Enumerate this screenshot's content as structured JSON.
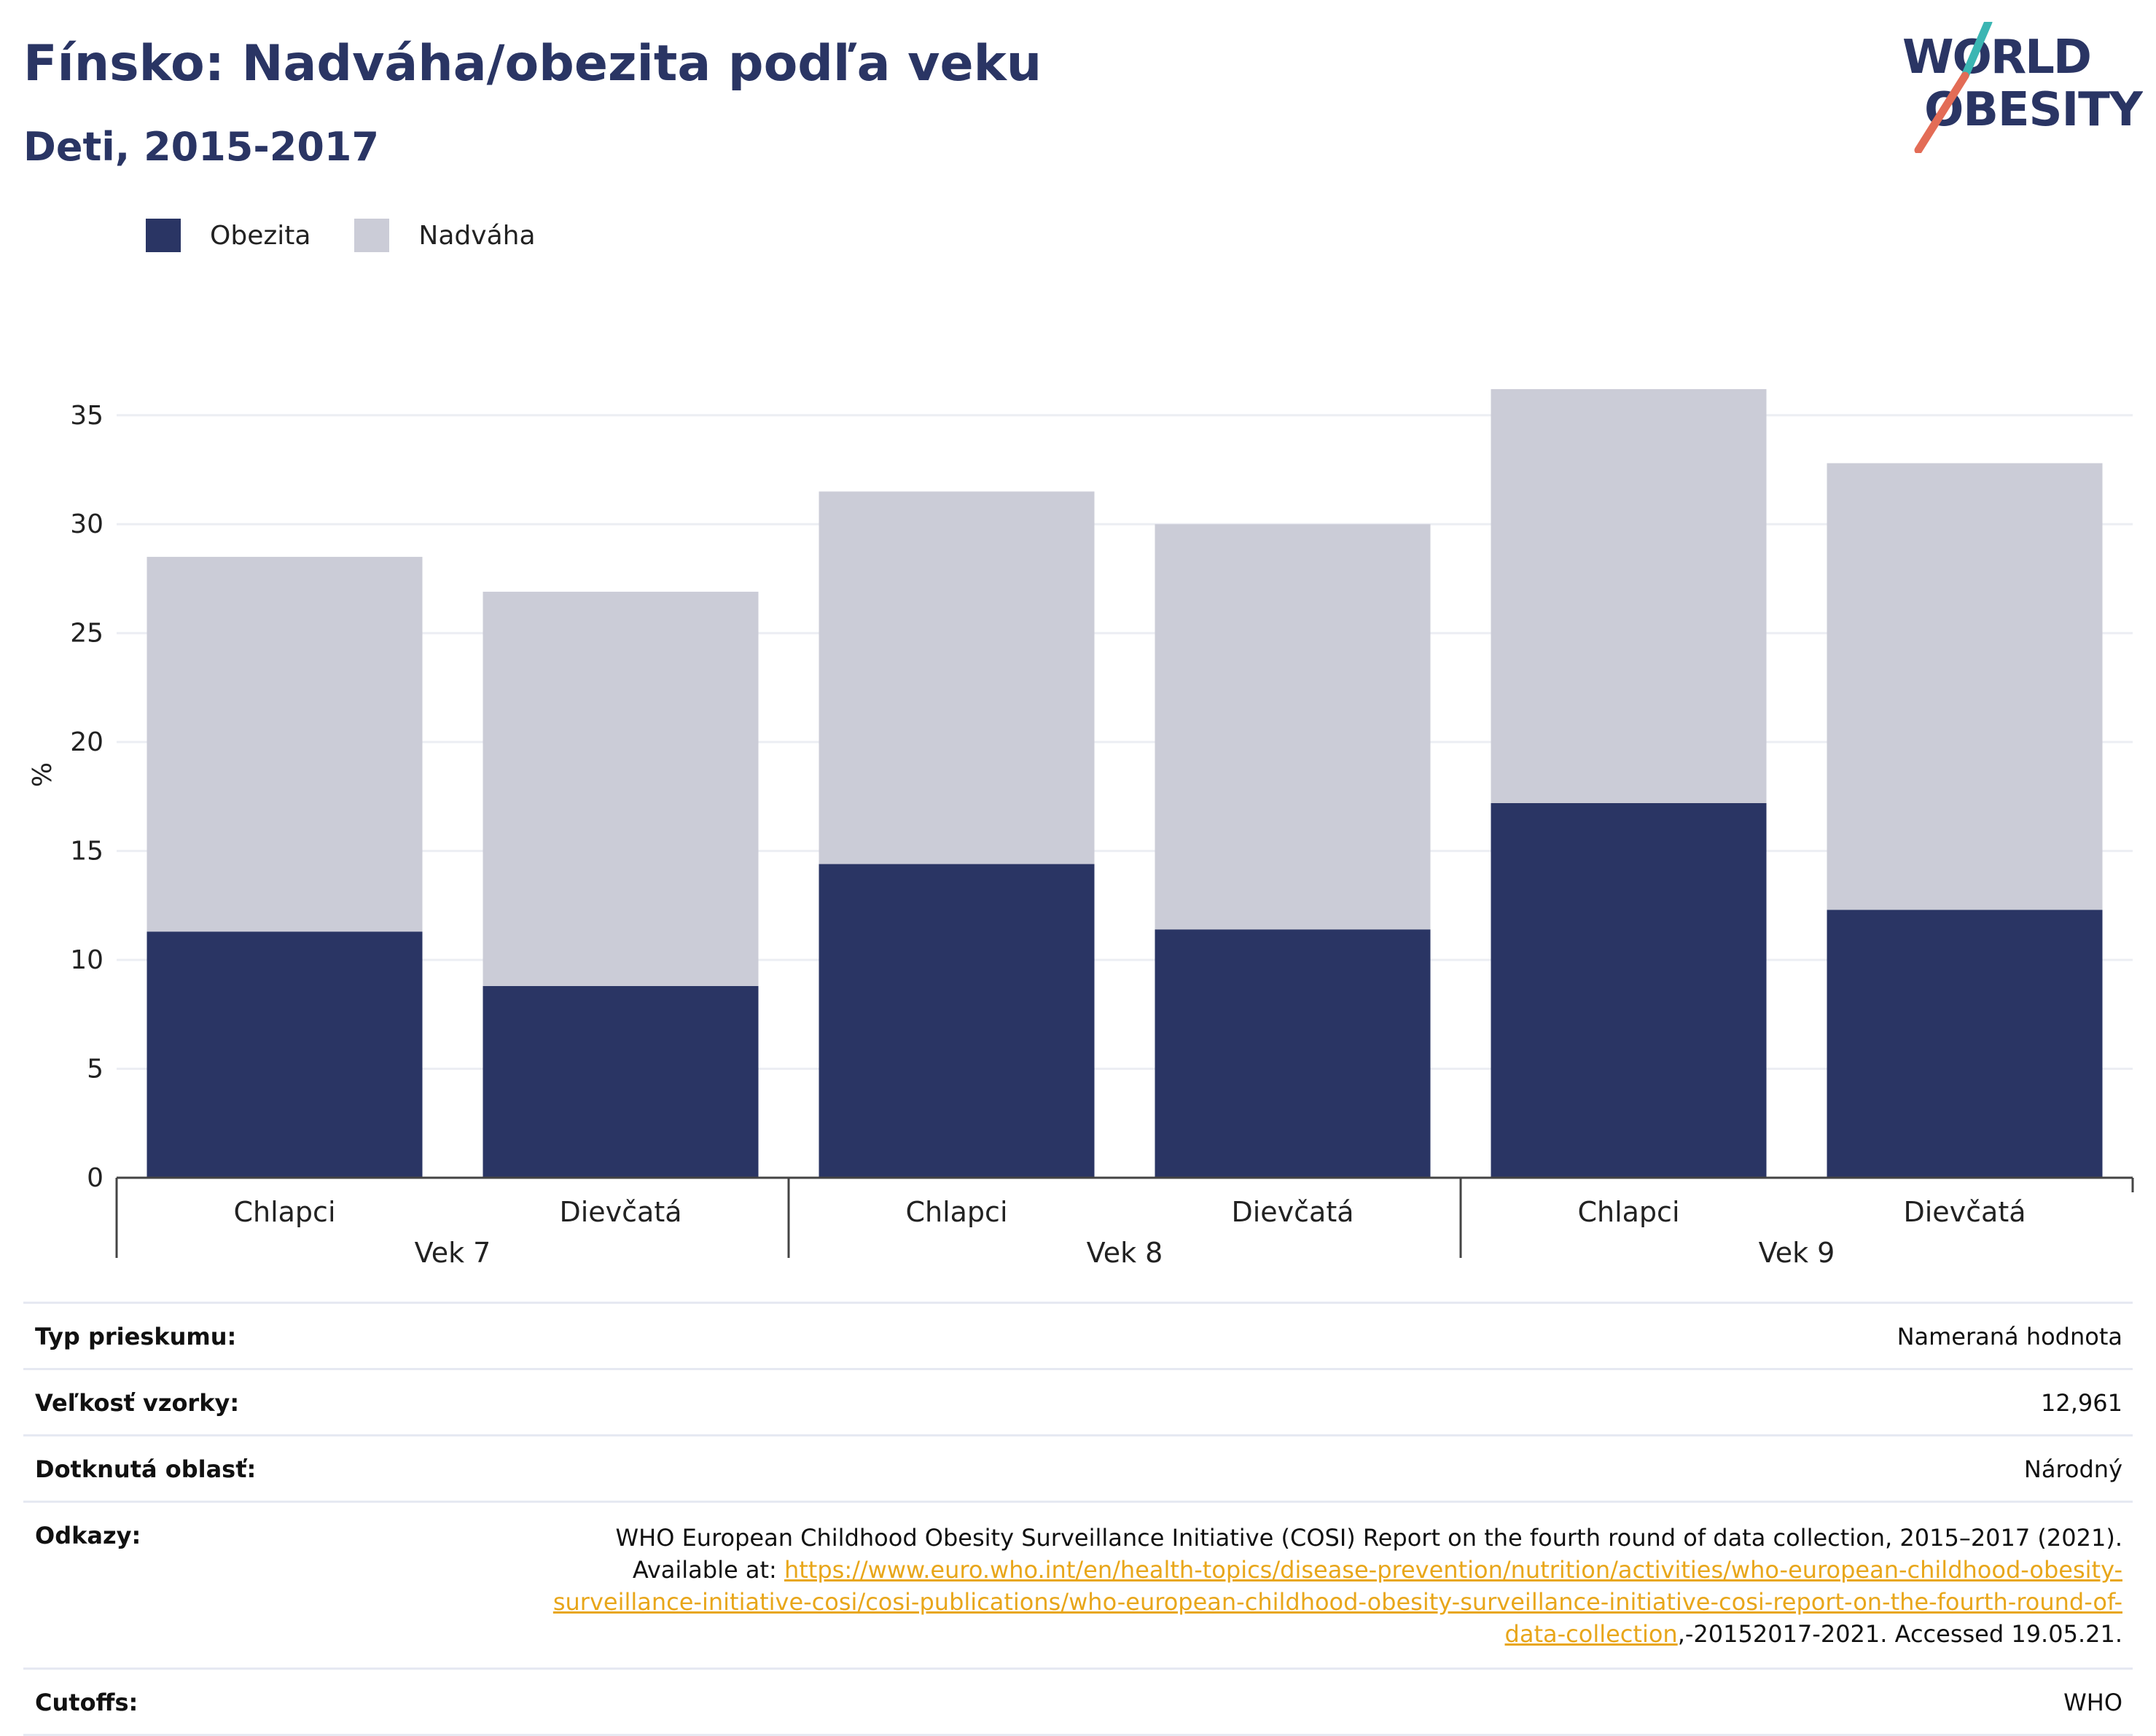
{
  "header": {
    "title": "Fínsko: Nadváha/obezita podľa veku",
    "subtitle": "Deti, 2015-2017"
  },
  "logo": {
    "line1": "WORLD",
    "line2": "OBESITY"
  },
  "legend": [
    {
      "label": "Obezita",
      "color": "#2a3564"
    },
    {
      "label": "Nadváha",
      "color": "#cbccd7"
    }
  ],
  "chart_data": {
    "type": "bar",
    "stacked": true,
    "ylabel": "%",
    "ylim": [
      0,
      37
    ],
    "yticks": [
      0,
      5,
      10,
      15,
      20,
      25,
      30,
      35
    ],
    "grid": true,
    "legend_position": "top-left",
    "categories": [
      "Chlapci",
      "Dievčatá",
      "Chlapci",
      "Dievčatá",
      "Chlapci",
      "Dievčatá"
    ],
    "groups": [
      {
        "label": "Vek 7",
        "span": 2
      },
      {
        "label": "Vek 8",
        "span": 2
      },
      {
        "label": "Vek 9",
        "span": 2
      }
    ],
    "series": [
      {
        "name": "Obezita",
        "color": "#2a3564",
        "values": [
          11.3,
          8.8,
          14.4,
          11.4,
          17.2,
          12.3
        ]
      },
      {
        "name": "Nadváha",
        "color": "#cbccd7",
        "values": [
          17.2,
          18.1,
          17.1,
          18.6,
          19.0,
          20.5
        ]
      }
    ]
  },
  "info": {
    "survey_type": {
      "label": "Typ prieskumu:",
      "value": "Nameraná hodnota"
    },
    "sample_size": {
      "label": "Veľkosť vzorky:",
      "value": "12,961"
    },
    "area": {
      "label": "Dotknutá oblasť:",
      "value": "Národný"
    },
    "references": {
      "label": "Odkazy:",
      "text_before": "WHO European Childhood Obesity Surveillance Initiative (COSI) Report on the fourth round of data collection, 2015–2017 (2021). Available at: ",
      "url": "https://www.euro.who.int/en/health-topics/disease-prevention/nutrition/activities/who-european-childhood-obesity-surveillance-initiative-cosi/cosi-publications/who-european-childhood-obesity-surveillance-initiative-cosi-report-on-the-fourth-round-of-data-collection",
      "text_after": ",-20152017-2021. Accessed 19.05.21."
    },
    "cutoffs": {
      "label": "Cutoffs:",
      "value": "WHO"
    }
  }
}
